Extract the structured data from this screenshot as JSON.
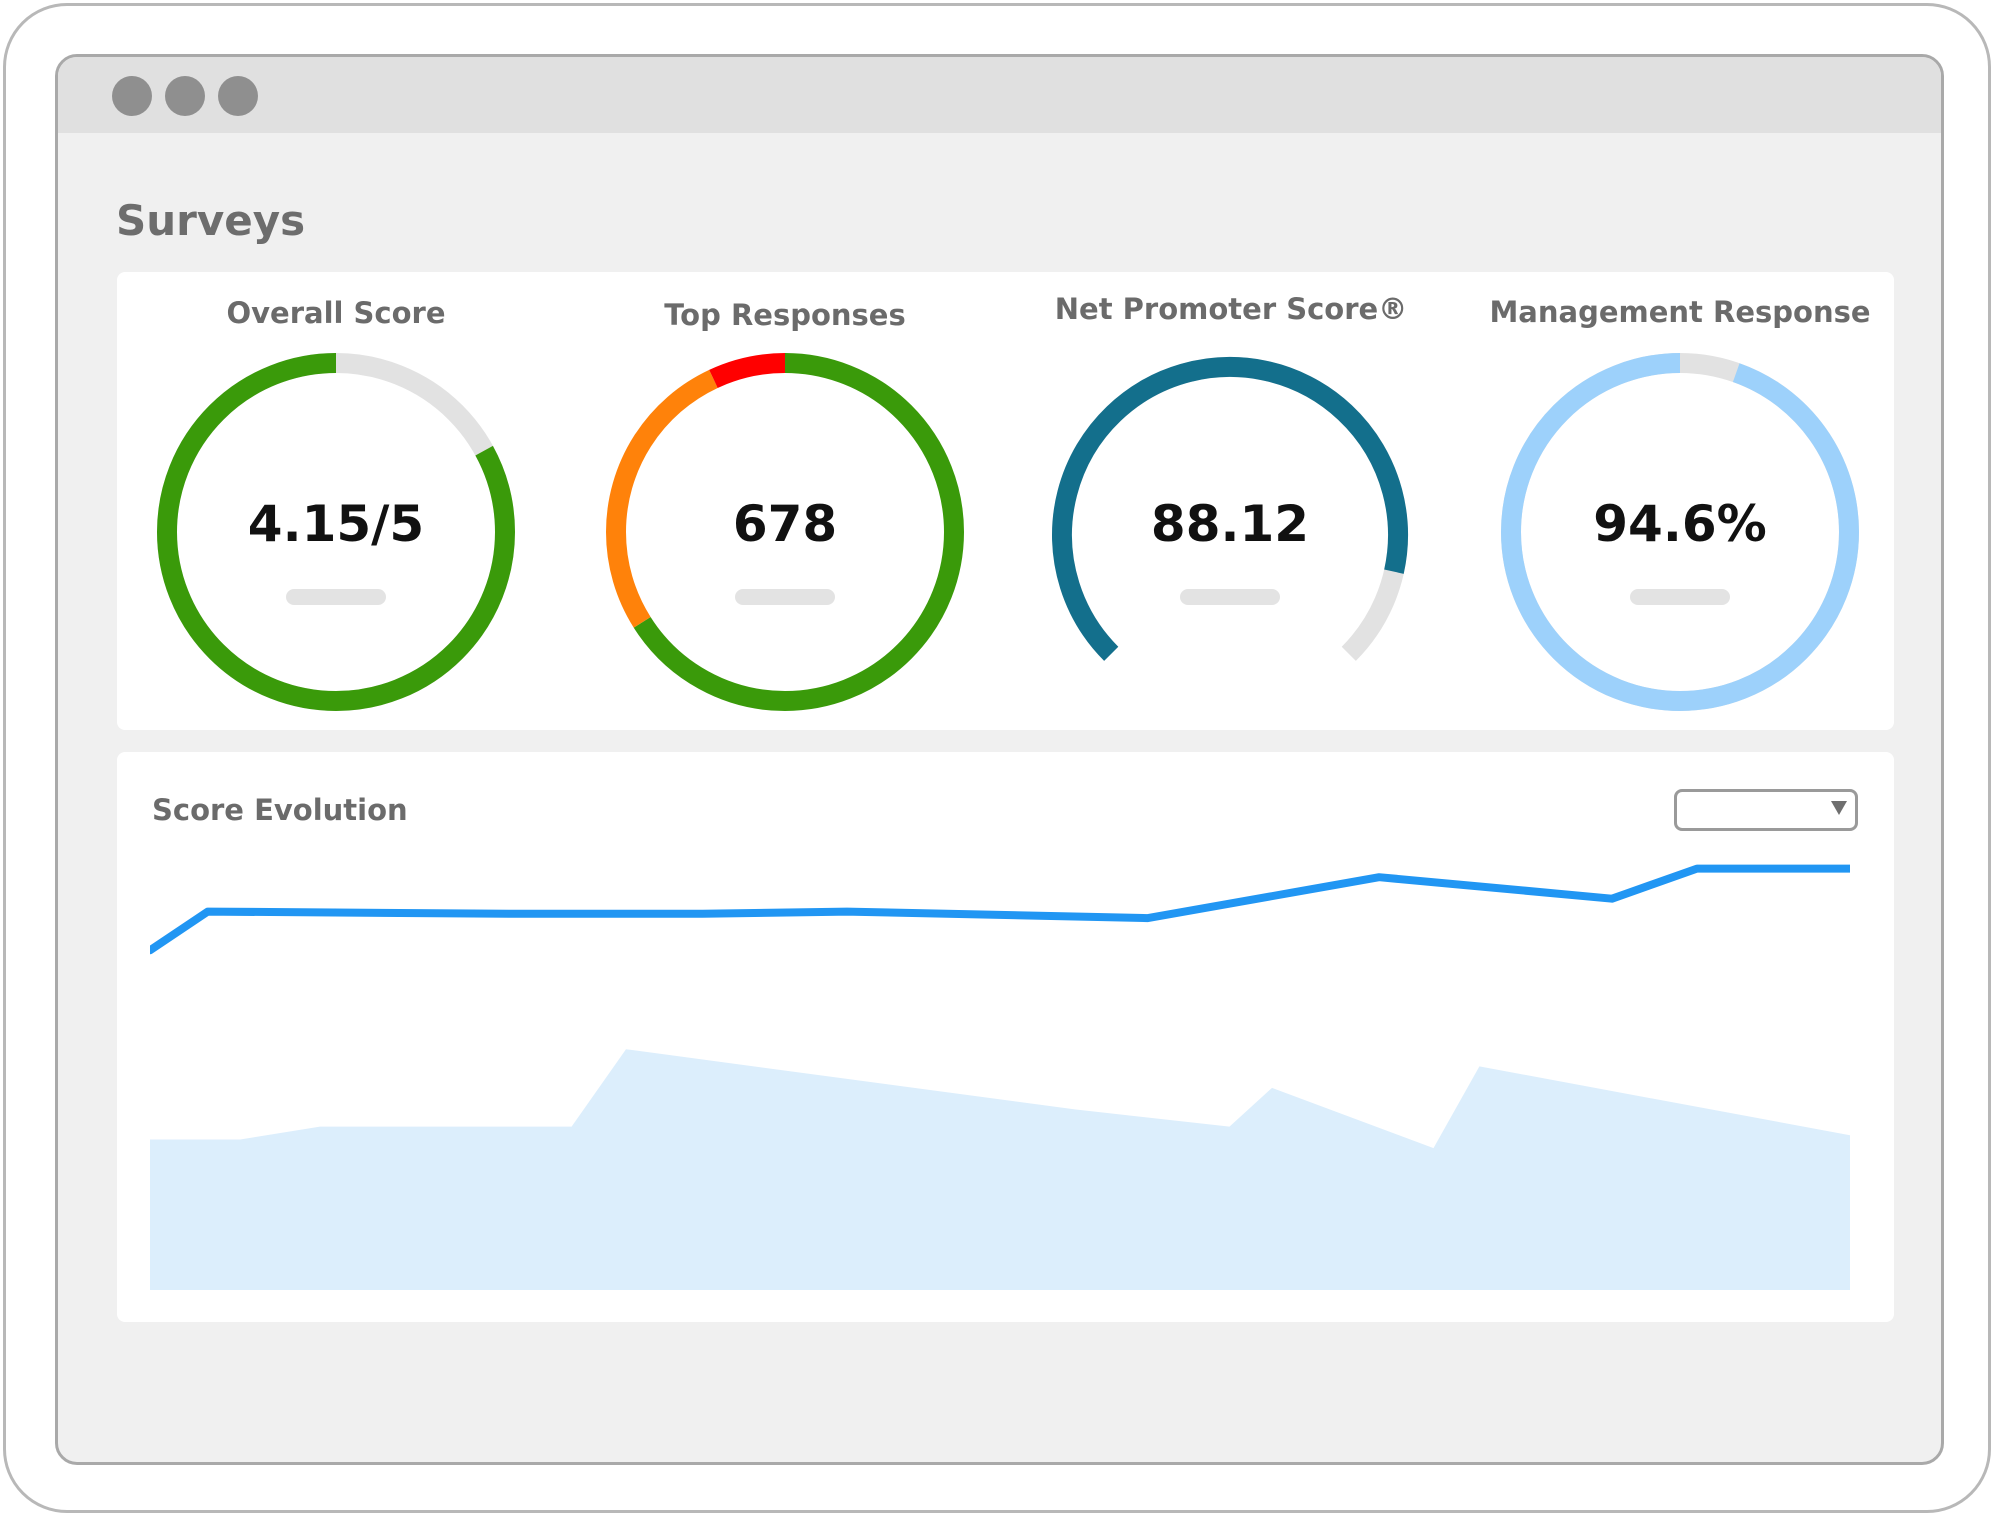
{
  "page": {
    "title": "Surveys"
  },
  "window": {
    "controls": [
      "dot",
      "dot",
      "dot"
    ]
  },
  "kpis": [
    {
      "title": "Overall Score",
      "value": "4.15/5",
      "gauge": {
        "fraction": 0.83,
        "color": "#3a9a0a",
        "track_color": "#e2e2e2"
      }
    },
    {
      "title": "Top Responses",
      "value": "678",
      "gauge": {
        "segments": [
          {
            "fraction": 0.66,
            "color": "#3a9a0a"
          },
          {
            "fraction": 0.27,
            "color": "#ff820a"
          },
          {
            "fraction": 0.07,
            "color": "#ff0000"
          }
        ]
      }
    },
    {
      "title": "Net Promoter Score®",
      "value": "88.12",
      "gauge": {
        "fraction": 0.88,
        "color": "#136f8c",
        "track_color": "#e2e2e2",
        "style": "open-arc"
      }
    },
    {
      "title": "Management Response",
      "value": "94.6%",
      "gauge": {
        "fraction": 0.946,
        "color": "#9dd1fb",
        "track_color": "#e2e2e2"
      }
    }
  ],
  "score_evolution": {
    "title": "Score Evolution",
    "dropdown": {
      "selected": "",
      "arrow_icon": "caret-down-icon"
    }
  },
  "chart_data": {
    "type": "line",
    "series": [
      {
        "type": "line",
        "color": "#2196f3",
        "x": [
          0,
          0.034,
          0.215,
          0.325,
          0.41,
          0.587,
          0.723,
          0.86,
          0.91,
          1.0
        ],
        "values": [
          0.79,
          0.88,
          0.875,
          0.875,
          0.88,
          0.865,
          0.96,
          0.91,
          0.98,
          0.98
        ]
      },
      {
        "type": "area",
        "color": "#dceefc",
        "x": [
          0,
          0.053,
          0.1,
          0.248,
          0.28,
          0.544,
          0.635,
          0.66,
          0.755,
          0.782,
          1.0
        ],
        "values": [
          0.35,
          0.35,
          0.38,
          0.38,
          0.56,
          0.42,
          0.38,
          0.47,
          0.33,
          0.52,
          0.36
        ]
      }
    ],
    "ylim": [
      0,
      1
    ],
    "grid": false,
    "legend": "none"
  }
}
